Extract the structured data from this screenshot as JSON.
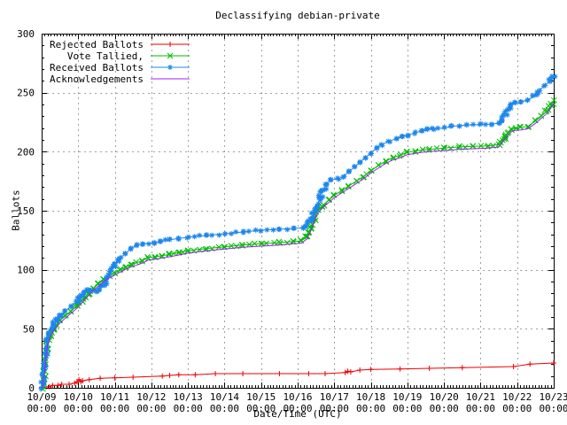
{
  "background": "#ffffff",
  "chart_data": {
    "type": "line",
    "title": "Declassifying debian-private",
    "xlabel": "Date/Time (UTC)",
    "ylabel": "Ballots",
    "ylim": [
      0,
      300
    ],
    "y_ticks": [
      0,
      50,
      100,
      150,
      200,
      250,
      300
    ],
    "y_minor_step": 10,
    "xrange_days": 14,
    "x_tick_dates": [
      "10/09",
      "10/10",
      "10/11",
      "10/12",
      "10/13",
      "10/14",
      "10/15",
      "10/16",
      "10/17",
      "10/18",
      "10/19",
      "10/20",
      "10/21",
      "10/22",
      "10/23"
    ],
    "x_tick_time": "00:00",
    "grid": true,
    "grid_color": "#a0a0a0",
    "legend_position": "top-left",
    "series": [
      {
        "name": "Rejected Ballots",
        "color": "#ee0000",
        "marker": "plus",
        "x": [
          0,
          0.2,
          0.3,
          0.45,
          0.55,
          0.75,
          0.9,
          0.97,
          1.02,
          1.07,
          1.12,
          1.3,
          1.6,
          2.0,
          2.5,
          3.3,
          3.5,
          3.75,
          4.2,
          4.75,
          5.5,
          6.5,
          7.3,
          7.75,
          8.3,
          8.37,
          8.45,
          8.7,
          9.0,
          9.8,
          10.6,
          11.5,
          12.9,
          13.35,
          14.0
        ],
        "y": [
          0,
          1,
          2,
          2,
          3,
          3,
          4,
          5,
          7,
          5,
          6,
          7,
          8,
          8.5,
          9,
          10,
          10.5,
          11,
          11,
          12,
          12,
          12,
          12,
          12,
          13,
          14,
          13.5,
          15,
          15.5,
          16,
          16.5,
          17,
          18,
          20,
          21
        ]
      },
      {
        "name": "Vote Tallied,",
        "color": "#00bb00",
        "marker": "cross",
        "x": [
          0,
          0.04,
          0.08,
          0.12,
          0.16,
          0.22,
          0.3,
          0.4,
          0.5,
          0.65,
          0.8,
          0.95,
          1.1,
          1.25,
          1.4,
          1.55,
          1.7,
          1.85,
          2.0,
          2.15,
          2.3,
          2.45,
          2.6,
          2.75,
          2.9,
          3.1,
          3.3,
          3.5,
          3.75,
          4.0,
          4.5,
          5.0,
          5.5,
          6.0,
          6.5,
          6.9,
          7.1,
          7.25,
          7.35,
          7.45,
          7.55,
          7.7,
          7.85,
          8.0,
          8.2,
          8.4,
          8.6,
          8.8,
          9.0,
          9.2,
          9.4,
          9.6,
          9.8,
          10.0,
          10.2,
          10.4,
          10.6,
          11.0,
          11.4,
          11.8,
          12.2,
          12.5,
          12.55,
          12.65,
          12.75,
          12.85,
          12.95,
          13.1,
          13.3,
          13.5,
          13.65,
          13.8,
          13.9,
          14.0
        ],
        "y": [
          0,
          5,
          15,
          28,
          38,
          44,
          49,
          53,
          57,
          61,
          65,
          69,
          74,
          79,
          84,
          88,
          92,
          95,
          97.5,
          100,
          102.5,
          104.5,
          106,
          107.5,
          110.5,
          111,
          112,
          113,
          114.5,
          116,
          118,
          119.5,
          121,
          122,
          123,
          124,
          124.5,
          128,
          134,
          143,
          150,
          155,
          159,
          163,
          167,
          171,
          175,
          179,
          184,
          188,
          192,
          195,
          197,
          199.5,
          200.5,
          201.5,
          202,
          203,
          204,
          204.5,
          205,
          206,
          208,
          212,
          216,
          219,
          220,
          220.5,
          221.5,
          226,
          230,
          234,
          238,
          243
        ]
      },
      {
        "name": "Received Ballots",
        "color": "#1c86ee",
        "marker": "star",
        "x": [
          0,
          0.04,
          0.08,
          0.12,
          0.16,
          0.22,
          0.3,
          0.4,
          0.5,
          0.65,
          0.8,
          0.95,
          1.05,
          1.15,
          1.25,
          1.35,
          1.5,
          1.6,
          1.7,
          1.8,
          1.9,
          2.0,
          2.15,
          2.3,
          2.45,
          2.6,
          2.75,
          3.1,
          3.25,
          3.5,
          3.75,
          4.0,
          4.5,
          5.0,
          5.5,
          6.0,
          6.5,
          6.9,
          7.15,
          7.25,
          7.35,
          7.5,
          7.6,
          7.7,
          7.8,
          7.9,
          8.1,
          8.25,
          8.4,
          8.55,
          8.7,
          8.85,
          9.0,
          9.15,
          9.3,
          9.5,
          9.7,
          9.85,
          10.0,
          10.2,
          10.4,
          10.55,
          10.7,
          11.0,
          11.2,
          11.4,
          11.6,
          12.0,
          12.3,
          12.5,
          12.55,
          12.65,
          12.75,
          12.85,
          12.95,
          13.1,
          13.3,
          13.45,
          13.6,
          13.75,
          13.9,
          14.0
        ],
        "y": [
          0,
          6,
          18,
          32,
          42,
          48,
          53,
          57,
          61,
          65,
          69,
          73,
          77,
          81,
          83,
          82,
          82,
          84,
          88,
          93,
          99,
          104,
          110,
          114,
          118,
          121,
          122,
          122.5,
          124,
          125.5,
          126.5,
          127.5,
          129,
          130.5,
          132,
          133.5,
          134.5,
          135,
          135.5,
          137,
          142,
          152,
          160,
          168,
          173,
          176,
          177,
          179,
          183,
          187,
          191,
          195,
          199,
          203,
          206,
          209,
          211,
          213,
          214,
          216,
          217.5,
          219,
          219.5,
          220,
          221.5,
          222,
          222.5,
          223,
          223.5,
          224,
          226,
          231,
          236,
          240,
          242,
          242.5,
          243.5,
          247,
          252,
          256,
          260,
          264
        ]
      },
      {
        "name": "Acknowledgements",
        "color": "#a020f0",
        "marker": "none",
        "x": [
          0,
          0.04,
          0.08,
          0.12,
          0.16,
          0.22,
          0.3,
          0.4,
          0.5,
          0.65,
          0.8,
          0.95,
          1.1,
          1.25,
          1.4,
          1.55,
          1.7,
          1.85,
          2.0,
          2.15,
          2.3,
          2.45,
          2.6,
          2.75,
          2.9,
          3.1,
          3.3,
          3.5,
          3.75,
          4.0,
          4.5,
          5.0,
          5.5,
          6.0,
          6.5,
          6.9,
          7.1,
          7.25,
          7.35,
          7.45,
          7.55,
          7.7,
          7.85,
          8.0,
          8.2,
          8.4,
          8.6,
          8.8,
          9.0,
          9.2,
          9.4,
          9.6,
          9.8,
          10.0,
          10.2,
          10.4,
          10.6,
          11.0,
          11.4,
          11.8,
          12.2,
          12.5,
          12.55,
          12.65,
          12.75,
          12.85,
          12.95,
          13.1,
          13.3,
          13.5,
          13.65,
          13.8,
          13.9,
          14.0
        ],
        "y": [
          0,
          4,
          13,
          26,
          36,
          42,
          47,
          51,
          55,
          59,
          63,
          67,
          72,
          77,
          82,
          86,
          90,
          93,
          95.5,
          98,
          100.5,
          102.5,
          104,
          105.5,
          108,
          109,
          110,
          111,
          112.5,
          114,
          116,
          117.5,
          119,
          120,
          121,
          122,
          122.5,
          126,
          132,
          141,
          148,
          153,
          157,
          161,
          165,
          169,
          173,
          177,
          182,
          186,
          190,
          193,
          195,
          197.5,
          198.5,
          199.5,
          200,
          201,
          202,
          202.5,
          203,
          204,
          206,
          210,
          214,
          217,
          218,
          218.5,
          219.5,
          224,
          228,
          232,
          236,
          241
        ]
      }
    ]
  }
}
